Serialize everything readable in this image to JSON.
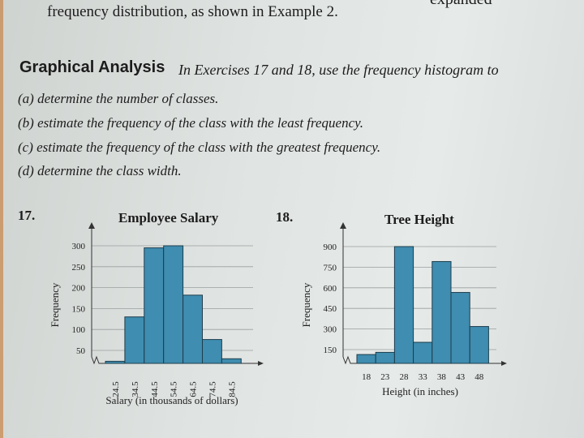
{
  "page": {
    "top_cut_text": "expanded",
    "intro_line": "frequency distribution, as shown in Example 2.",
    "section_heading": "Graphical Analysis",
    "section_text": "In Exercises 17 and 18, use the frequency histogram to",
    "items": [
      "(a)  determine the number of classes.",
      "(b)  estimate the frequency of the class with the least frequency.",
      "(c)  estimate the frequency of the class with the greatest frequency.",
      "(d)  determine the class width."
    ],
    "exercise_17": "17.",
    "exercise_18": "18."
  },
  "colors": {
    "bar": "#3f8db0",
    "bar_stroke": "#1d3d4c",
    "grid": "#9aa0a0"
  },
  "chart_data": [
    {
      "type": "bar",
      "title": "Employee Salary",
      "xlabel": "Salary (in thousands of dollars)",
      "ylabel": "Frequency",
      "categories": [
        "24.5",
        "34.5",
        "44.5",
        "54.5",
        "64.5",
        "74.5",
        "84.5"
      ],
      "values": [
        24,
        130,
        295,
        300,
        182,
        76,
        30
      ],
      "yticks": [
        50,
        100,
        150,
        200,
        250,
        300
      ],
      "ylim": [
        18,
        300
      ],
      "axis_break": true,
      "grid": true
    },
    {
      "type": "bar",
      "title": "Tree Height",
      "xlabel": "Height (in inches)",
      "ylabel": "Frequency",
      "categories": [
        "18",
        "23",
        "28",
        "33",
        "38",
        "43",
        "48"
      ],
      "values": [
        114,
        130,
        900,
        203,
        791,
        566,
        318
      ],
      "yticks": [
        150,
        300,
        450,
        600,
        750,
        900
      ],
      "ylim": [
        118,
        900
      ],
      "axis_break": true,
      "grid": true
    }
  ]
}
